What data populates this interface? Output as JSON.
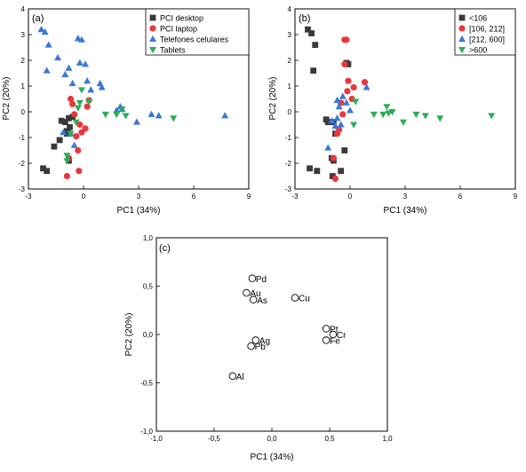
{
  "chart_data": [
    {
      "panel": "(a)",
      "type": "scatter",
      "xlabel": "PC1 (34%)",
      "ylabel": "PC2 (20%)",
      "xlim": [
        -3,
        9
      ],
      "ylim": [
        -3,
        4
      ],
      "xticks": [
        -3,
        0,
        3,
        6,
        9
      ],
      "yticks": [
        -3,
        -2,
        -1,
        0,
        1,
        2,
        3,
        4
      ],
      "legend_position": "top-right",
      "series": [
        {
          "name": "PCI desktop",
          "marker": "square",
          "color": "#3a3a3a",
          "x": [
            -2.2,
            -2.0,
            -1.6,
            -1.3,
            -1.2,
            -1.0,
            -0.9,
            -0.9,
            -0.8,
            -0.8,
            -0.75,
            -0.6
          ],
          "y": [
            -2.2,
            -2.3,
            -1.35,
            -1.1,
            -0.35,
            -0.4,
            -0.85,
            -0.75,
            -1.9,
            -0.25,
            -0.6,
            -0.2
          ]
        },
        {
          "name": "PCI laptop",
          "marker": "circle",
          "color": "#e8383d",
          "x": [
            -0.9,
            -0.8,
            -0.7,
            -0.6,
            -0.5,
            -0.4,
            -0.3,
            -0.25,
            -0.2,
            -0.1,
            0.1,
            0.2,
            0.3
          ],
          "y": [
            -2.5,
            -1.8,
            0.5,
            0.3,
            -0.1,
            -0.95,
            -1.5,
            -2.3,
            -0.5,
            -0.8,
            -0.65,
            0.2,
            0.45
          ]
        },
        {
          "name": "Telefones celulares",
          "marker": "triangle-up",
          "color": "#3c78d8",
          "x": [
            -2.3,
            -2.1,
            -1.9,
            -2.0,
            -1.4,
            -1.0,
            -0.8,
            -0.6,
            -0.3,
            -0.2,
            -0.1,
            0.1,
            0.2,
            0.4,
            0.9,
            1.0,
            1.8,
            2.0,
            2.1,
            2.9,
            3.7,
            4.1,
            7.7,
            -0.7,
            -0.5,
            -1.1
          ],
          "y": [
            3.2,
            3.1,
            2.6,
            1.6,
            2.1,
            1.45,
            1.7,
            1.1,
            2.85,
            1.9,
            2.8,
            1.85,
            1.2,
            0.85,
            1.1,
            0.95,
            0.05,
            0.2,
            0.1,
            -0.4,
            -0.1,
            -0.15,
            -0.15,
            -0.85,
            -1.3,
            -0.8
          ]
        },
        {
          "name": "Tablets",
          "marker": "triangle-down",
          "color": "#2eab5a",
          "x": [
            -0.9,
            -0.7,
            -0.4,
            -0.3,
            -0.2,
            -0.1,
            0.3,
            1.2,
            1.8,
            2.1,
            2.3,
            4.9,
            -0.9
          ],
          "y": [
            -1.7,
            -0.85,
            -0.4,
            0.15,
            0.35,
            0.85,
            0.4,
            -0.1,
            -0.1,
            0.1,
            -0.15,
            -0.25,
            -1.9
          ]
        }
      ]
    },
    {
      "panel": "(b)",
      "type": "scatter",
      "xlabel": "PC1 (34%)",
      "ylabel": "PC2 (20%)",
      "xlim": [
        -3,
        9
      ],
      "ylim": [
        -3,
        4
      ],
      "xticks": [
        -3,
        0,
        3,
        6,
        9
      ],
      "yticks": [
        -3,
        -2,
        -1,
        0,
        1,
        2,
        3,
        4
      ],
      "legend_position": "top-right",
      "series": [
        {
          "name": "<106",
          "marker": "square",
          "color": "#3a3a3a",
          "x": [
            -2.3,
            -2.1,
            -2.2,
            -1.9,
            -2.0,
            -1.8,
            -1.2,
            -1.0,
            -0.9,
            -0.95,
            -0.8,
            -0.5,
            -0.3,
            -0.2,
            -0.1,
            -0.9,
            -1.3
          ],
          "y": [
            3.2,
            3.05,
            -2.2,
            2.6,
            1.6,
            -2.3,
            -0.4,
            -1.8,
            -1.9,
            -2.5,
            -0.85,
            -2.3,
            -1.5,
            1.9,
            1.85,
            -0.4,
            -0.3
          ]
        },
        {
          "name": "[106, 212]",
          "marker": "circle",
          "color": "#e8383d",
          "x": [
            -0.9,
            -0.7,
            -0.6,
            -0.5,
            -0.4,
            -0.3,
            -0.2,
            -0.3,
            -0.15,
            -0.1,
            0.1,
            0.2,
            0.8,
            -0.8
          ],
          "y": [
            -1.8,
            -0.85,
            -0.7,
            0.35,
            -0.1,
            2.8,
            2.8,
            1.85,
            0.8,
            1.2,
            0.5,
            0.95,
            1.15,
            -2.6
          ]
        },
        {
          "name": "[212, 600]",
          "marker": "triangle-up",
          "color": "#3c78d8",
          "x": [
            -1.0,
            -0.8,
            -0.7,
            -0.6,
            -0.5,
            -0.4,
            -0.2,
            0.0,
            0.9,
            -0.7,
            -1.2
          ],
          "y": [
            -0.35,
            -0.55,
            0.45,
            0.2,
            -0.5,
            0.6,
            0.35,
            0.05,
            0.95,
            -0.25,
            -1.4
          ]
        },
        {
          "name": ">600",
          "marker": "triangle-down",
          "color": "#2eab5a",
          "x": [
            0.3,
            0.2,
            1.3,
            1.8,
            2.0,
            2.1,
            2.3,
            2.9,
            3.6,
            4.1,
            4.9,
            7.7
          ],
          "y": [
            0.4,
            -0.5,
            -0.1,
            -0.1,
            0.2,
            -0.05,
            0.0,
            -0.4,
            -0.1,
            -0.15,
            -0.25,
            -0.15
          ]
        }
      ]
    },
    {
      "panel": "(c)",
      "type": "scatter",
      "xlabel": "PC1 (34%)",
      "ylabel": "PC2 (20%)",
      "xlim": [
        -1.0,
        1.0
      ],
      "ylim": [
        -1.0,
        1.0
      ],
      "xticks": [
        "-1,0",
        "-0,5",
        "0,0",
        "0,5",
        "1,0"
      ],
      "yticks": [
        "-1,0",
        "-0,5",
        "0,0",
        "0,5",
        "1,0"
      ],
      "series": [
        {
          "marker": "open-circle",
          "color": "#000000",
          "labels": [
            "Pd",
            "Au",
            "As",
            "Cu",
            "Pt",
            "Cr",
            "Fe",
            "Ag",
            "Pb",
            "Al"
          ],
          "x": [
            -0.17,
            -0.22,
            -0.16,
            0.2,
            0.47,
            0.53,
            0.47,
            -0.14,
            -0.18,
            -0.34
          ],
          "y": [
            0.58,
            0.43,
            0.36,
            0.38,
            0.06,
            0.0,
            -0.06,
            -0.06,
            -0.12,
            -0.43
          ]
        }
      ]
    }
  ]
}
